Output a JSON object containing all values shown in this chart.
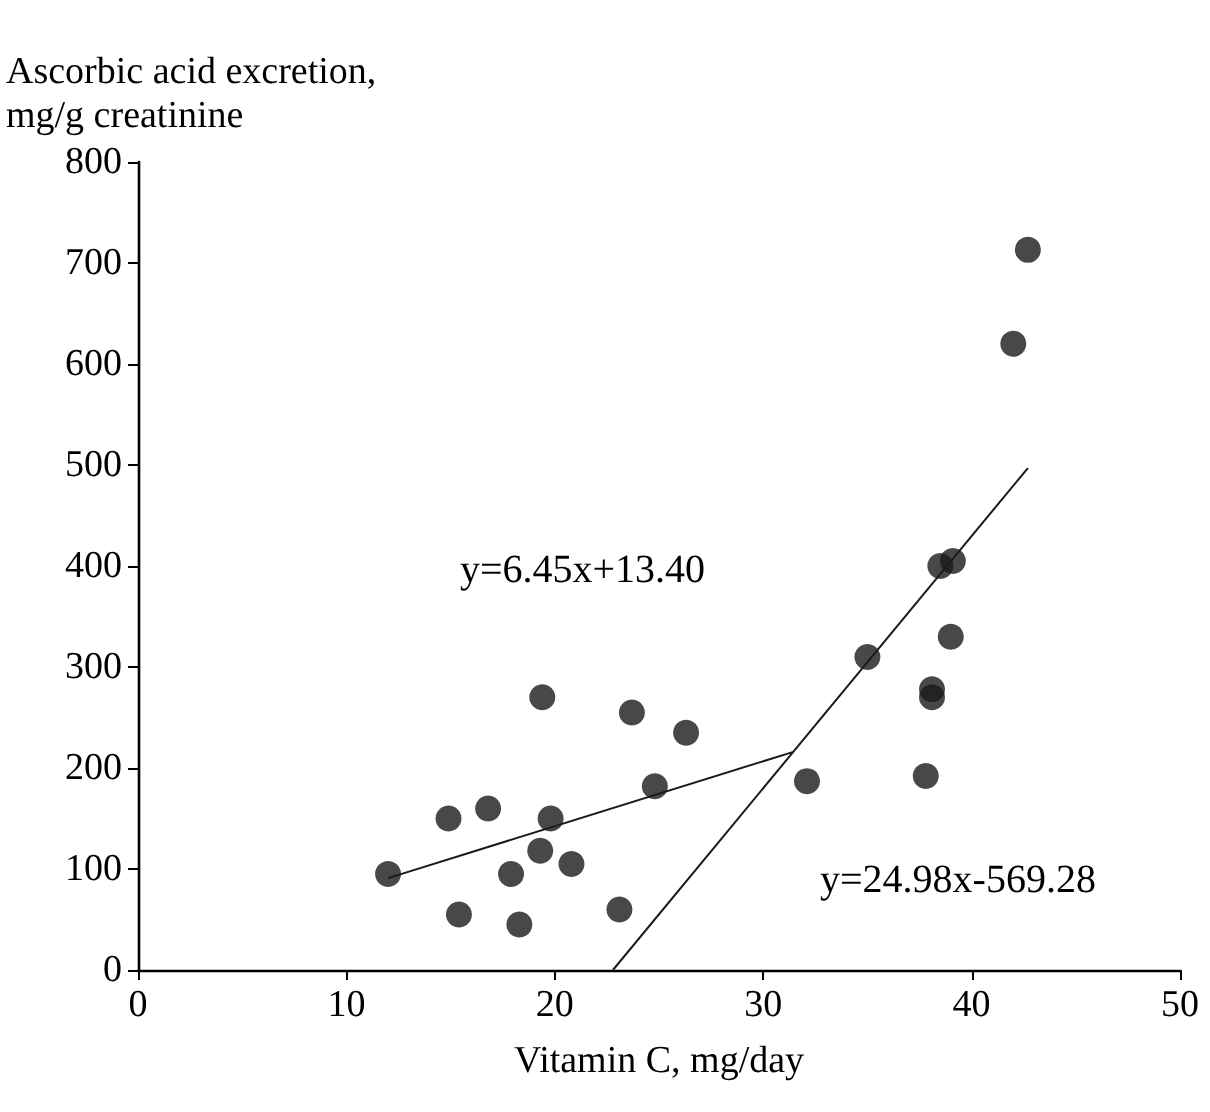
{
  "chart_data": {
    "type": "scatter",
    "xlabel": "Vitamin C, mg/day",
    "ylabel": "Ascorbic acid excretion,\nmg/g creatinine",
    "xlim": [
      0,
      50
    ],
    "xticks": [
      0,
      10,
      20,
      30,
      40,
      50
    ],
    "ylim": [
      0,
      800
    ],
    "yticks": [
      0,
      100,
      200,
      300,
      400,
      500,
      600,
      700,
      800
    ],
    "grid": false,
    "marker": "circle",
    "series": [
      {
        "color": "#1a1a1a",
        "x": [
          12.0,
          14.9,
          15.4,
          16.8,
          17.9,
          18.3,
          19.3,
          19.4,
          19.8,
          20.8,
          23.1,
          23.7,
          24.8,
          26.3,
          32.1,
          35.0,
          37.8,
          38.1,
          38.1,
          38.5,
          39.1,
          39.0,
          42.0,
          42.7
        ],
        "values": [
          95,
          150,
          55,
          160,
          95,
          45,
          118,
          270,
          150,
          105,
          60,
          255,
          182,
          235,
          187,
          310,
          192,
          270,
          278,
          400,
          405,
          330,
          620,
          713
        ]
      },
      {
        "type": "line",
        "color": "#1a1a1a",
        "marker": "none",
        "x": [
          12,
          31.45
        ],
        "values": [
          91,
          216
        ]
      },
      {
        "type": "line",
        "color": "#1a1a1a",
        "marker": "none",
        "x": [
          22.79,
          42.7
        ],
        "values": [
          0,
          497
        ]
      }
    ],
    "annotations": [
      "y=6.45x+13.40",
      "y=24.98x-569.28"
    ]
  }
}
